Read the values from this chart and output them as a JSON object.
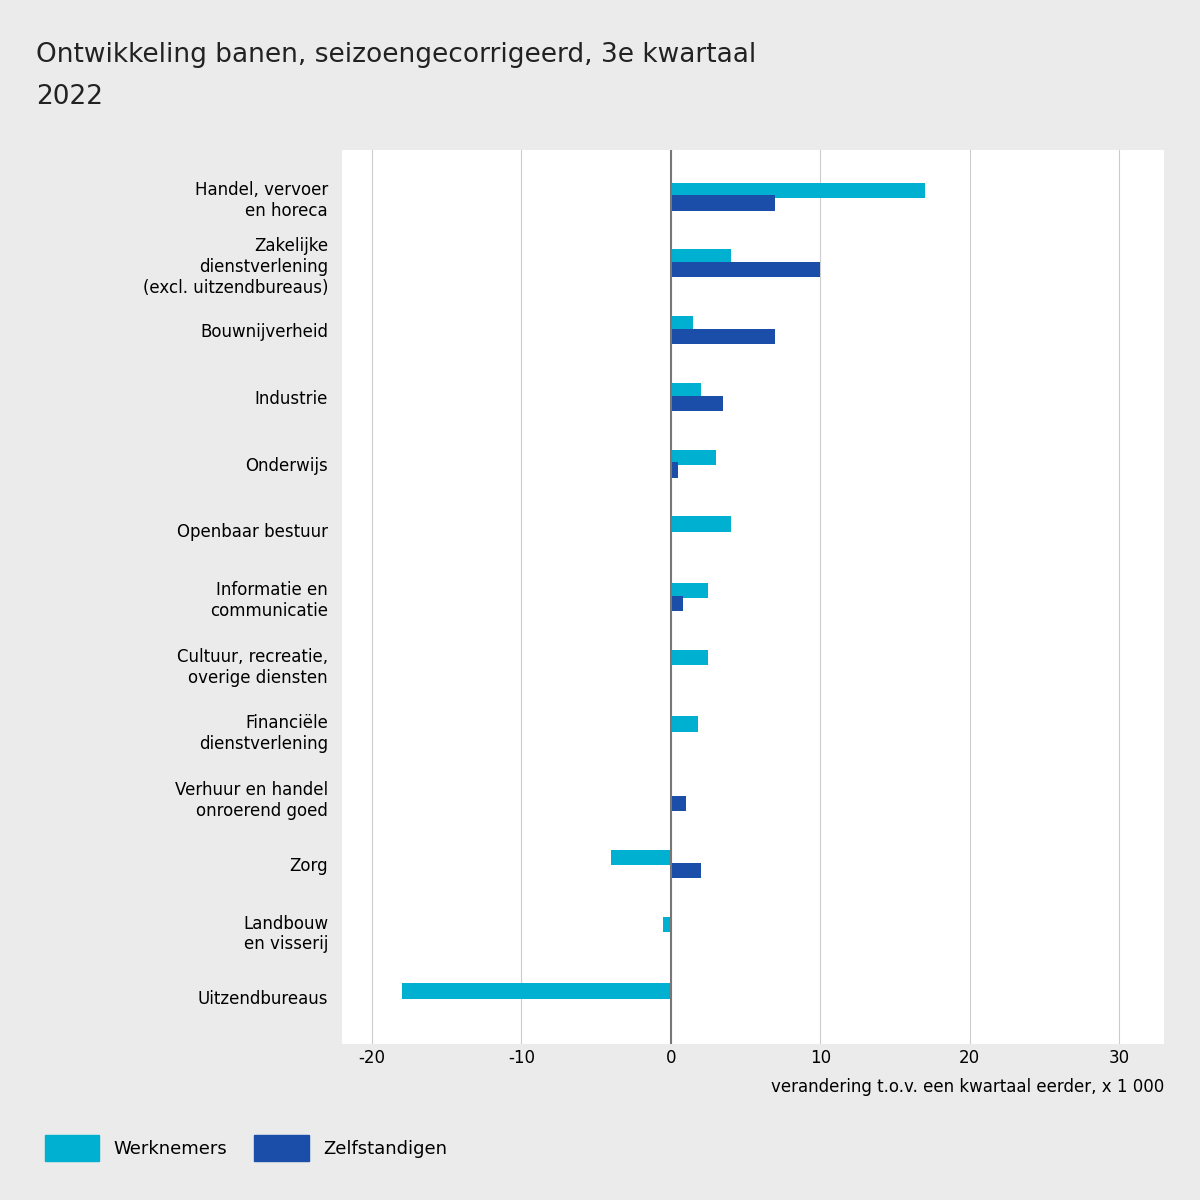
{
  "title_line1": "Ontwikkeling banen, seizoengecorrigeerd, 3e kwartaal",
  "title_line2": "2022",
  "categories": [
    "Handel, vervoer\nen horeca",
    "Zakelijke\ndienstverlening\n(excl. uitzendbureaus)",
    "Bouwnijverheid",
    "Industrie",
    "Onderwijs",
    "Openbaar bestuur",
    "Informatie en\ncommunicatie",
    "Cultuur, recreatie,\noverige diensten",
    "Financiële\ndienstverlening",
    "Verhuur en handel\nonroerend goed",
    "Zorg",
    "Landbouw\nen visserij",
    "Uitzendbureaus"
  ],
  "werknemers": [
    17.0,
    4.0,
    1.5,
    2.0,
    3.0,
    4.0,
    2.5,
    2.5,
    1.8,
    0.0,
    -4.0,
    -0.5,
    -18.0
  ],
  "zelfstandigen": [
    7.0,
    10.0,
    7.0,
    3.5,
    0.5,
    0.0,
    0.8,
    0.0,
    0.0,
    1.0,
    2.0,
    0.0,
    0.0
  ],
  "color_werknemers": "#00B0D0",
  "color_zelfstandigen": "#1B4EA8",
  "xlabel": "verandering t.o.v. een kwartaal eerder, x 1 000",
  "xlim": [
    -22,
    33
  ],
  "xticks": [
    -20,
    -10,
    0,
    10,
    20,
    30
  ],
  "background_color": "#ebebeb",
  "plot_background": "#ffffff",
  "legend_werknemers": "Werknemers",
  "legend_zelfstandigen": "Zelfstandigen",
  "title_fontsize": 19,
  "label_fontsize": 12,
  "tick_fontsize": 12
}
